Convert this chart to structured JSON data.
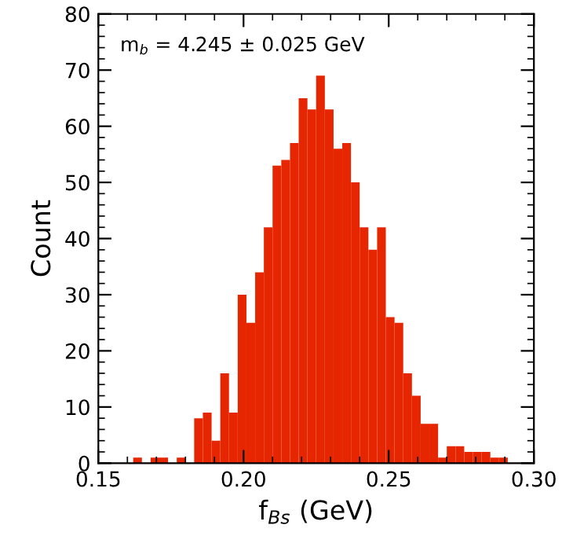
{
  "chart_data": {
    "type": "histogram",
    "xlabel": "f$_{Bs}$ (GeV)",
    "ylabel": "Count",
    "annotations": [
      "m$_{b}$ = 4.245 ± 0.025 GeV"
    ],
    "bins": [
      0.15,
      0.153,
      0.156,
      0.159,
      0.162,
      0.165,
      0.168,
      0.171,
      0.174,
      0.177,
      0.18,
      0.183,
      0.186,
      0.189,
      0.192,
      0.195,
      0.198,
      0.201,
      0.204,
      0.207,
      0.21,
      0.213,
      0.216,
      0.219,
      0.222,
      0.225,
      0.228,
      0.231,
      0.234,
      0.237,
      0.24,
      0.243,
      0.246,
      0.249,
      0.252,
      0.255,
      0.258,
      0.261,
      0.264,
      0.267,
      0.27,
      0.273,
      0.276,
      0.279,
      0.282,
      0.285,
      0.288,
      0.291
    ],
    "values": [
      0,
      0,
      0,
      0,
      1,
      0,
      1,
      1,
      0,
      1,
      0,
      8,
      9,
      4,
      16,
      9,
      30,
      25,
      34,
      42,
      53,
      54,
      57,
      65,
      63,
      69,
      63,
      56,
      57,
      50,
      42,
      38,
      42,
      26,
      25,
      16,
      12,
      7,
      7,
      1,
      3,
      3,
      2,
      2,
      2,
      1,
      1
    ],
    "color": "#e62600",
    "xlim": [
      0.15,
      0.3
    ],
    "ylim": [
      0,
      80
    ],
    "xticks": [
      {
        "value": 0.15,
        "label": "0.15"
      },
      {
        "value": 0.16,
        "label": null
      },
      {
        "value": 0.17,
        "label": null
      },
      {
        "value": 0.18,
        "label": null
      },
      {
        "value": 0.19,
        "label": null
      },
      {
        "value": 0.2,
        "label": "0.20"
      },
      {
        "value": 0.21,
        "label": null
      },
      {
        "value": 0.22,
        "label": null
      },
      {
        "value": 0.23,
        "label": null
      },
      {
        "value": 0.24,
        "label": null
      },
      {
        "value": 0.25,
        "label": "0.25"
      },
      {
        "value": 0.26,
        "label": null
      },
      {
        "value": 0.27,
        "label": null
      },
      {
        "value": 0.28,
        "label": null
      },
      {
        "value": 0.29,
        "label": null
      },
      {
        "value": 0.3,
        "label": "0.30"
      }
    ],
    "yticks": [
      0,
      {
        "value": 2,
        "label": null
      },
      {
        "value": 4,
        "label": null
      },
      {
        "value": 6,
        "label": null
      },
      {
        "value": 8,
        "label": null
      },
      10,
      {
        "value": 12,
        "label": null
      },
      {
        "value": 14,
        "label": null
      },
      {
        "value": 16,
        "label": null
      },
      {
        "value": 18,
        "label": null
      },
      20,
      {
        "value": 22,
        "label": null
      },
      {
        "value": 24,
        "label": null
      },
      {
        "value": 26,
        "label": null
      },
      {
        "value": 28,
        "label": null
      },
      30,
      {
        "value": 32,
        "label": null
      },
      {
        "value": 34,
        "label": null
      },
      {
        "value": 36,
        "label": null
      },
      {
        "value": 38,
        "label": null
      },
      40,
      {
        "value": 42,
        "label": null
      },
      {
        "value": 44,
        "label": null
      },
      {
        "value": 46,
        "label": null
      },
      {
        "value": 48,
        "label": null
      },
      50,
      {
        "value": 52,
        "label": null
      },
      {
        "value": 54,
        "label": null
      },
      {
        "value": 56,
        "label": null
      },
      {
        "value": 58,
        "label": null
      },
      60,
      {
        "value": 62,
        "label": null
      },
      {
        "value": 64,
        "label": null
      },
      {
        "value": 66,
        "label": null
      },
      {
        "value": 68,
        "label": null
      },
      70,
      {
        "value": 72,
        "label": null
      },
      {
        "value": 74,
        "label": null
      },
      {
        "value": 76,
        "label": null
      },
      {
        "value": 78,
        "label": null
      },
      80
    ],
    "grid": false
  }
}
